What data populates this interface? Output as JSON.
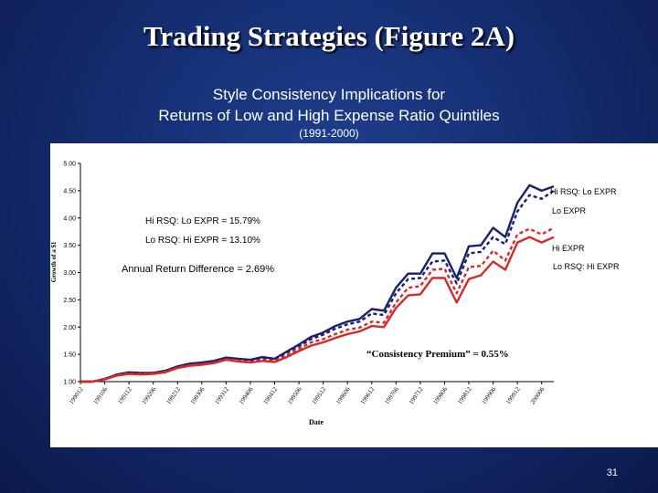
{
  "slide": {
    "title": "Trading Strategies (Figure 2A)",
    "subtitle_line1": "Style Consistency Implications for",
    "subtitle_line2": "Returns of Low and High Expense Ratio Quintiles",
    "period": "(1991-2000)",
    "page_number": "31"
  },
  "colors": {
    "navy": "#1a1f6e",
    "red": "#d62a2a"
  },
  "chart_data": {
    "type": "line",
    "xlabel": "Date",
    "ylabel": "Growth of a $1",
    "ylim": [
      1.0,
      5.0
    ],
    "yticks": [
      "5.00",
      "4.50",
      "4.00",
      "3.50",
      "3.00",
      "2.50",
      "2.00",
      "1.50",
      "1.00"
    ],
    "x": [
      "199012",
      "199103",
      "199106",
      "199109",
      "199112",
      "199203",
      "199206",
      "199209",
      "199212",
      "199303",
      "199306",
      "199309",
      "199312",
      "199403",
      "199406",
      "199409",
      "199412",
      "199503",
      "199506",
      "199509",
      "199512",
      "199603",
      "199606",
      "199609",
      "199612",
      "199703",
      "199706",
      "199709",
      "199712",
      "199803",
      "199806",
      "199809",
      "199812",
      "199903",
      "199906",
      "199909",
      "199912",
      "200003",
      "200006",
      "200009"
    ],
    "xtick_labels": [
      "199012",
      "199106",
      "199112",
      "199206",
      "199212",
      "199306",
      "199312",
      "199406",
      "199412",
      "199506",
      "199512",
      "199606",
      "199612",
      "199706",
      "199712",
      "199806",
      "199812",
      "199906",
      "199912",
      "200006"
    ],
    "series": [
      {
        "name": "Hi RSQ: Lo EXPR",
        "color": "#1a1f6e",
        "dash": "solid",
        "values": [
          1.0,
          1.0,
          1.05,
          1.13,
          1.17,
          1.16,
          1.16,
          1.2,
          1.28,
          1.33,
          1.35,
          1.38,
          1.44,
          1.42,
          1.4,
          1.45,
          1.42,
          1.55,
          1.68,
          1.82,
          1.9,
          2.02,
          2.1,
          2.15,
          2.33,
          2.3,
          2.72,
          2.98,
          2.98,
          3.35,
          3.35,
          2.9,
          3.48,
          3.5,
          3.82,
          3.65,
          4.28,
          4.6,
          4.5,
          4.58
        ]
      },
      {
        "name": "Lo EXPR",
        "color": "#1a1f6e",
        "dash": "dashed",
        "values": [
          1.0,
          1.0,
          1.05,
          1.12,
          1.16,
          1.15,
          1.16,
          1.19,
          1.27,
          1.32,
          1.34,
          1.37,
          1.43,
          1.41,
          1.39,
          1.43,
          1.41,
          1.53,
          1.65,
          1.78,
          1.86,
          1.97,
          2.05,
          2.1,
          2.25,
          2.22,
          2.62,
          2.88,
          2.9,
          3.2,
          3.22,
          2.8,
          3.35,
          3.38,
          3.65,
          3.52,
          4.12,
          4.42,
          4.35,
          4.5
        ]
      },
      {
        "name": "Hi EXPR",
        "color": "#d62a2a",
        "dash": "dashed",
        "values": [
          1.0,
          1.0,
          1.04,
          1.12,
          1.15,
          1.14,
          1.15,
          1.18,
          1.26,
          1.3,
          1.32,
          1.35,
          1.41,
          1.39,
          1.36,
          1.4,
          1.38,
          1.48,
          1.6,
          1.72,
          1.78,
          1.87,
          1.95,
          1.99,
          2.1,
          2.08,
          2.45,
          2.72,
          2.75,
          3.05,
          3.07,
          2.62,
          3.1,
          3.12,
          3.4,
          3.22,
          3.7,
          3.8,
          3.7,
          3.82
        ]
      },
      {
        "name": "Lo RSQ: Hi EXPR",
        "color": "#d62a2a",
        "dash": "solid",
        "values": [
          1.0,
          1.0,
          1.04,
          1.11,
          1.14,
          1.13,
          1.14,
          1.17,
          1.25,
          1.29,
          1.31,
          1.34,
          1.4,
          1.37,
          1.35,
          1.38,
          1.36,
          1.45,
          1.56,
          1.66,
          1.72,
          1.8,
          1.87,
          1.92,
          2.02,
          2.0,
          2.35,
          2.58,
          2.6,
          2.9,
          2.9,
          2.45,
          2.88,
          2.95,
          3.2,
          3.05,
          3.55,
          3.65,
          3.55,
          3.65
        ]
      }
    ],
    "annotations": [
      "Hi RSQ: Lo EXPR = 15.79%",
      "Lo RSQ: Hi EXPR = 13.10%",
      "Annual Return Difference = 2.69%",
      "“Consistency Premium” = 0.55%"
    ],
    "grid": false,
    "legend": "right-end labels"
  }
}
